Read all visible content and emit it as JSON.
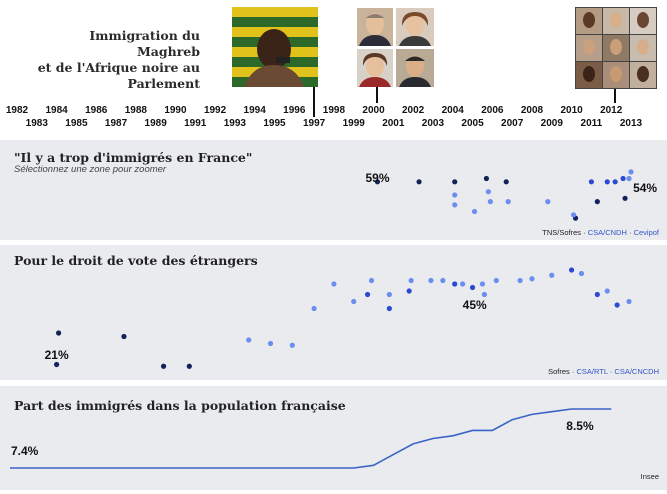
{
  "header": {
    "title_lines": [
      "Immigration du Maghreb",
      "et de l'Afrique noire au",
      "Parlement"
    ]
  },
  "photos": [
    {
      "name": "deputy-photo-1997"
    },
    {
      "name": "deputy-photo-2000-a"
    },
    {
      "name": "deputy-photo-2000-b"
    },
    {
      "name": "deputy-photo-2000-c"
    },
    {
      "name": "deputy-photo-2000-d"
    },
    {
      "name": "deputy-photo-2012"
    }
  ],
  "timeline": {
    "top_years": [
      "1982",
      "1984",
      "1986",
      "1988",
      "1990",
      "1992",
      "1994",
      "1996",
      "1998",
      "2000",
      "2002",
      "2004",
      "2006",
      "2008",
      "2010",
      "2012"
    ],
    "bottom_years": [
      "1983",
      "1985",
      "1987",
      "1989",
      "1991",
      "1993",
      "1995",
      "1997",
      "1999",
      "2001",
      "2003",
      "2005",
      "2007",
      "2009",
      "2011",
      "2013"
    ]
  },
  "chart_data": [
    {
      "type": "scatter",
      "title": "\"Il y a trop d'immigrés en France\"",
      "subtitle": "Sélectionnez une zone pour zoomer",
      "source": [
        "TNS/Sofres",
        "CSA/CNDH",
        "Cevipof"
      ],
      "labels": [
        {
          "text": "59%",
          "x": 2000.2
        },
        {
          "text": "54%",
          "x": 2012.6
        }
      ],
      "colors": [
        "#13225a",
        "#2b4ad2",
        "#6b8ff0"
      ],
      "series": [
        {
          "name": "TNS/Sofres",
          "color": "#13225a",
          "points": [
            [
              2000.2,
              59
            ],
            [
              2002.3,
              59
            ],
            [
              2004.1,
              59
            ],
            [
              2005.7,
              60
            ],
            [
              2006.7,
              59
            ],
            [
              2010.2,
              48
            ],
            [
              2011.3,
              53
            ],
            [
              2012.7,
              54
            ]
          ]
        },
        {
          "name": "CSA/CNDH",
          "color": "#2b4ad2",
          "points": [
            [
              2011.0,
              59
            ],
            [
              2011.8,
              59
            ],
            [
              2012.2,
              59
            ],
            [
              2012.6,
              60
            ]
          ]
        },
        {
          "name": "Cevipof",
          "color": "#6b8ff0",
          "points": [
            [
              2004.1,
              55
            ],
            [
              2004.1,
              52
            ],
            [
              2005.1,
              50
            ],
            [
              2005.8,
              56
            ],
            [
              2005.9,
              53
            ],
            [
              2006.8,
              53
            ],
            [
              2008.8,
              53
            ],
            [
              2010.1,
              49
            ],
            [
              2012.9,
              60
            ],
            [
              2013.0,
              62
            ]
          ]
        }
      ]
    },
    {
      "type": "scatter",
      "title": "Pour le droit de vote des étrangers",
      "source": [
        "Sofres",
        "CSA/RTL",
        "CSA/CNCDH"
      ],
      "labels": [
        {
          "text": "21%",
          "x": 1984.0
        },
        {
          "text": "45%",
          "x": 2004.4
        }
      ],
      "colors": [
        "#13225a",
        "#2b4ad2",
        "#6b8ff0"
      ],
      "series": [
        {
          "name": "Sofres",
          "color": "#13225a",
          "points": [
            [
              1984.1,
              30
            ],
            [
              1984.0,
              21
            ],
            [
              1987.4,
              29
            ],
            [
              1989.4,
              20.5
            ],
            [
              1990.7,
              20.5
            ]
          ]
        },
        {
          "name": "CSA/RTL",
          "color": "#2b4ad2",
          "points": [
            [
              1999.7,
              41
            ],
            [
              2000.8,
              37
            ],
            [
              2001.8,
              42
            ],
            [
              2004.1,
              44
            ],
            [
              2005.0,
              43
            ],
            [
              2010.0,
              48
            ],
            [
              2011.3,
              41
            ],
            [
              2012.3,
              38
            ]
          ]
        },
        {
          "name": "CSA/CNCDH",
          "color": "#6b8ff0",
          "points": [
            [
              1993.7,
              28
            ],
            [
              1994.8,
              27
            ],
            [
              1995.9,
              26.5
            ],
            [
              1997.0,
              37
            ],
            [
              1998.0,
              44
            ],
            [
              1999.0,
              39
            ],
            [
              1999.9,
              45
            ],
            [
              2000.8,
              41
            ],
            [
              2001.9,
              45
            ],
            [
              2002.9,
              45
            ],
            [
              2003.5,
              45
            ],
            [
              2004.5,
              44
            ],
            [
              2005.5,
              44
            ],
            [
              2005.6,
              41
            ],
            [
              2006.2,
              45
            ],
            [
              2007.4,
              45
            ],
            [
              2008.0,
              45.5
            ],
            [
              2009.0,
              46.5
            ],
            [
              2010.5,
              47
            ],
            [
              2011.8,
              42
            ],
            [
              2012.9,
              39
            ]
          ]
        }
      ]
    },
    {
      "type": "line",
      "title": "Part des immigrés dans la population française",
      "source": [
        "Insee"
      ],
      "labels": [
        {
          "text": "7.4%",
          "x": 1982.0
        },
        {
          "text": "8.5%",
          "x": 2011.5
        }
      ],
      "color": "#3a63c8",
      "x": [
        1982,
        1999,
        2000,
        2001,
        2002,
        2003,
        2004,
        2005,
        2006,
        2007,
        2008,
        2009,
        2010,
        2011,
        2012
      ],
      "values": [
        7.4,
        7.4,
        7.45,
        7.65,
        7.85,
        7.95,
        8.0,
        8.1,
        8.1,
        8.3,
        8.4,
        8.45,
        8.5,
        8.5,
        8.5
      ]
    }
  ]
}
